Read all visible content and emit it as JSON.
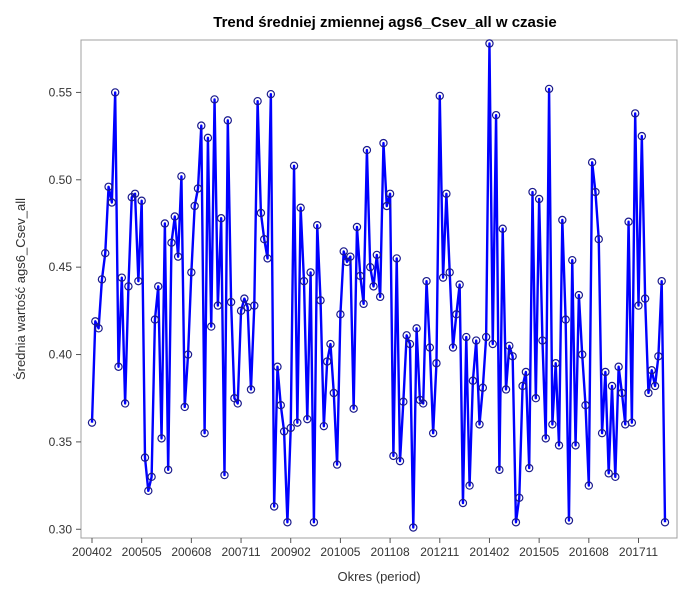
{
  "chart_data": {
    "type": "line",
    "title": "Trend średniej zmiennej ags6_Csev_all w czasie",
    "xlabel": "Okres (period)",
    "ylabel": "Średnia wartość ags6_Csev_all",
    "ylim": [
      0.295,
      0.58
    ],
    "yticks": [
      0.3,
      0.35,
      0.4,
      0.45,
      0.5,
      0.55
    ],
    "ytick_labels": [
      "0.30",
      "0.35",
      "0.40",
      "0.45",
      "0.50",
      "0.55"
    ],
    "xtick_labels": [
      "200402",
      "200505",
      "200608",
      "200711",
      "200902",
      "201005",
      "201108",
      "201211",
      "201402",
      "201505",
      "201608",
      "201711"
    ],
    "xtick_every": 15,
    "grid": false,
    "legend": "none",
    "colors": {
      "line": "#0000ff",
      "marker": "#1a1a8c"
    },
    "series": [
      {
        "values": [
          0.361,
          0.419,
          0.415,
          0.443,
          0.458,
          0.496,
          0.487,
          0.55,
          0.393,
          0.444,
          0.372,
          0.439,
          0.49,
          0.492,
          0.442,
          0.488,
          0.341,
          0.322,
          0.33,
          0.42,
          0.439,
          0.352,
          0.475,
          0.334,
          0.464,
          0.479,
          0.456,
          0.502,
          0.37,
          0.4,
          0.447,
          0.485,
          0.495,
          0.531,
          0.355,
          0.524,
          0.416,
          0.546,
          0.428,
          0.478,
          0.331,
          0.534,
          0.43,
          0.375,
          0.372,
          0.425,
          0.432,
          0.427,
          0.38,
          0.428,
          0.545,
          0.481,
          0.466,
          0.455,
          0.549,
          0.313,
          0.393,
          0.371,
          0.356,
          0.304,
          0.358,
          0.508,
          0.361,
          0.484,
          0.442,
          0.363,
          0.447,
          0.304,
          0.474,
          0.431,
          0.359,
          0.396,
          0.406,
          0.378,
          0.337,
          0.423,
          0.459,
          0.453,
          0.456,
          0.369,
          0.473,
          0.445,
          0.429,
          0.517,
          0.45,
          0.439,
          0.457,
          0.433,
          0.521,
          0.485,
          0.492,
          0.342,
          0.455,
          0.339,
          0.373,
          0.411,
          0.406,
          0.301,
          0.415,
          0.374,
          0.372,
          0.442,
          0.404,
          0.355,
          0.395,
          0.548,
          0.444,
          0.492,
          0.447,
          0.404,
          0.423,
          0.44,
          0.315,
          0.41,
          0.325,
          0.385,
          0.408,
          0.36,
          0.381,
          0.41,
          0.578,
          0.406,
          0.537,
          0.334,
          0.472,
          0.38,
          0.405,
          0.399,
          0.304,
          0.318,
          0.382,
          0.39,
          0.335,
          0.493,
          0.375,
          0.489,
          0.408,
          0.352,
          0.552,
          0.36,
          0.395,
          0.348,
          0.477,
          0.42,
          0.305,
          0.454,
          0.348,
          0.434,
          0.4,
          0.371,
          0.325,
          0.51,
          0.493,
          0.466,
          0.355,
          0.39,
          0.332,
          0.382,
          0.33,
          0.393,
          0.378,
          0.36,
          0.476,
          0.361,
          0.538,
          0.428,
          0.525,
          0.432,
          0.378,
          0.391,
          0.382,
          0.399,
          0.442,
          0.304
        ]
      }
    ]
  }
}
